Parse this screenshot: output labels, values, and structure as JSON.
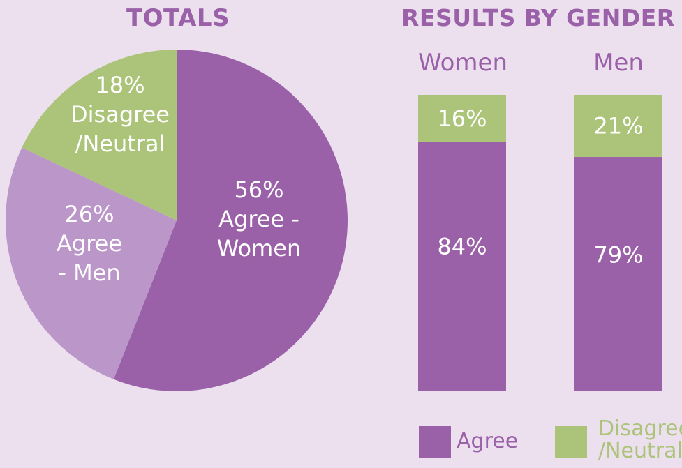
{
  "colors": {
    "agree_women": "#9b61a8",
    "agree_men": "#bb96c9",
    "disagree_neutral": "#acc47a",
    "agree": "#9b61a8",
    "background": "#ece0ef"
  },
  "chart_data": [
    {
      "type": "pie",
      "title": "TOTALS",
      "slices": [
        {
          "label_lines": [
            "56%",
            "Agree -",
            "Women"
          ],
          "value": 56,
          "color": "#9b61a8"
        },
        {
          "label_lines": [
            "26%",
            "Agree",
            "- Men"
          ],
          "value": 26,
          "color": "#bb96c9"
        },
        {
          "label_lines": [
            "18%",
            "Disagree",
            "/Neutral"
          ],
          "value": 18,
          "color": "#acc47a"
        }
      ]
    },
    {
      "type": "bar",
      "stacked": true,
      "title": "RESULTS BY GENDER",
      "categories": [
        "Women",
        "Men"
      ],
      "series": [
        {
          "name": "Agree",
          "values": [
            84,
            79
          ],
          "labels": [
            "84%",
            "79%"
          ],
          "color": "#9b61a8"
        },
        {
          "name": "Disagree /Neutral",
          "values": [
            16,
            21
          ],
          "labels": [
            "16%",
            "21%"
          ],
          "color": "#acc47a"
        }
      ],
      "ylim": [
        0,
        100
      ],
      "legend": {
        "position": "bottom",
        "items": [
          {
            "lines": [
              "Agree"
            ],
            "color": "#9b61a8"
          },
          {
            "lines": [
              "Disagree",
              "/Neutral"
            ],
            "color": "#acc47a"
          }
        ]
      }
    }
  ]
}
